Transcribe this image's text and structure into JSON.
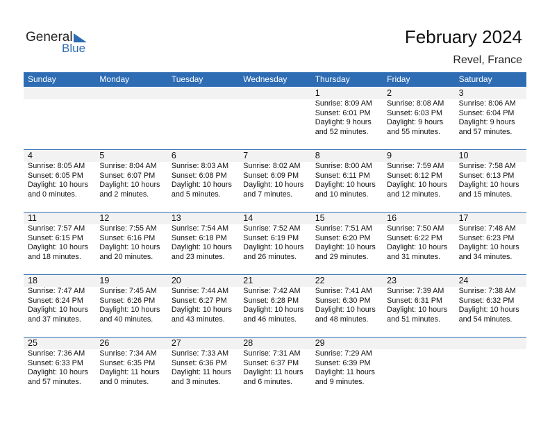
{
  "logo": {
    "word1": "General",
    "word2": "Blue"
  },
  "header": {
    "title": "February 2024",
    "subtitle": "Revel, France"
  },
  "weekdays": [
    "Sunday",
    "Monday",
    "Tuesday",
    "Wednesday",
    "Thursday",
    "Friday",
    "Saturday"
  ],
  "weeks": [
    [
      null,
      null,
      null,
      null,
      {
        "day": 1,
        "sunrise": "Sunrise: 8:09 AM",
        "sunset": "Sunset: 6:01 PM",
        "daylight": "Daylight: 9 hours",
        "minutes": "and 52 minutes."
      },
      {
        "day": 2,
        "sunrise": "Sunrise: 8:08 AM",
        "sunset": "Sunset: 6:03 PM",
        "daylight": "Daylight: 9 hours",
        "minutes": "and 55 minutes."
      },
      {
        "day": 3,
        "sunrise": "Sunrise: 8:06 AM",
        "sunset": "Sunset: 6:04 PM",
        "daylight": "Daylight: 9 hours",
        "minutes": "and 57 minutes."
      }
    ],
    [
      {
        "day": 4,
        "sunrise": "Sunrise: 8:05 AM",
        "sunset": "Sunset: 6:05 PM",
        "daylight": "Daylight: 10 hours",
        "minutes": "and 0 minutes."
      },
      {
        "day": 5,
        "sunrise": "Sunrise: 8:04 AM",
        "sunset": "Sunset: 6:07 PM",
        "daylight": "Daylight: 10 hours",
        "minutes": "and 2 minutes."
      },
      {
        "day": 6,
        "sunrise": "Sunrise: 8:03 AM",
        "sunset": "Sunset: 6:08 PM",
        "daylight": "Daylight: 10 hours",
        "minutes": "and 5 minutes."
      },
      {
        "day": 7,
        "sunrise": "Sunrise: 8:02 AM",
        "sunset": "Sunset: 6:09 PM",
        "daylight": "Daylight: 10 hours",
        "minutes": "and 7 minutes."
      },
      {
        "day": 8,
        "sunrise": "Sunrise: 8:00 AM",
        "sunset": "Sunset: 6:11 PM",
        "daylight": "Daylight: 10 hours",
        "minutes": "and 10 minutes."
      },
      {
        "day": 9,
        "sunrise": "Sunrise: 7:59 AM",
        "sunset": "Sunset: 6:12 PM",
        "daylight": "Daylight: 10 hours",
        "minutes": "and 12 minutes."
      },
      {
        "day": 10,
        "sunrise": "Sunrise: 7:58 AM",
        "sunset": "Sunset: 6:13 PM",
        "daylight": "Daylight: 10 hours",
        "minutes": "and 15 minutes."
      }
    ],
    [
      {
        "day": 11,
        "sunrise": "Sunrise: 7:57 AM",
        "sunset": "Sunset: 6:15 PM",
        "daylight": "Daylight: 10 hours",
        "minutes": "and 18 minutes."
      },
      {
        "day": 12,
        "sunrise": "Sunrise: 7:55 AM",
        "sunset": "Sunset: 6:16 PM",
        "daylight": "Daylight: 10 hours",
        "minutes": "and 20 minutes."
      },
      {
        "day": 13,
        "sunrise": "Sunrise: 7:54 AM",
        "sunset": "Sunset: 6:18 PM",
        "daylight": "Daylight: 10 hours",
        "minutes": "and 23 minutes."
      },
      {
        "day": 14,
        "sunrise": "Sunrise: 7:52 AM",
        "sunset": "Sunset: 6:19 PM",
        "daylight": "Daylight: 10 hours",
        "minutes": "and 26 minutes."
      },
      {
        "day": 15,
        "sunrise": "Sunrise: 7:51 AM",
        "sunset": "Sunset: 6:20 PM",
        "daylight": "Daylight: 10 hours",
        "minutes": "and 29 minutes."
      },
      {
        "day": 16,
        "sunrise": "Sunrise: 7:50 AM",
        "sunset": "Sunset: 6:22 PM",
        "daylight": "Daylight: 10 hours",
        "minutes": "and 31 minutes."
      },
      {
        "day": 17,
        "sunrise": "Sunrise: 7:48 AM",
        "sunset": "Sunset: 6:23 PM",
        "daylight": "Daylight: 10 hours",
        "minutes": "and 34 minutes."
      }
    ],
    [
      {
        "day": 18,
        "sunrise": "Sunrise: 7:47 AM",
        "sunset": "Sunset: 6:24 PM",
        "daylight": "Daylight: 10 hours",
        "minutes": "and 37 minutes."
      },
      {
        "day": 19,
        "sunrise": "Sunrise: 7:45 AM",
        "sunset": "Sunset: 6:26 PM",
        "daylight": "Daylight: 10 hours",
        "minutes": "and 40 minutes."
      },
      {
        "day": 20,
        "sunrise": "Sunrise: 7:44 AM",
        "sunset": "Sunset: 6:27 PM",
        "daylight": "Daylight: 10 hours",
        "minutes": "and 43 minutes."
      },
      {
        "day": 21,
        "sunrise": "Sunrise: 7:42 AM",
        "sunset": "Sunset: 6:28 PM",
        "daylight": "Daylight: 10 hours",
        "minutes": "and 46 minutes."
      },
      {
        "day": 22,
        "sunrise": "Sunrise: 7:41 AM",
        "sunset": "Sunset: 6:30 PM",
        "daylight": "Daylight: 10 hours",
        "minutes": "and 48 minutes."
      },
      {
        "day": 23,
        "sunrise": "Sunrise: 7:39 AM",
        "sunset": "Sunset: 6:31 PM",
        "daylight": "Daylight: 10 hours",
        "minutes": "and 51 minutes."
      },
      {
        "day": 24,
        "sunrise": "Sunrise: 7:38 AM",
        "sunset": "Sunset: 6:32 PM",
        "daylight": "Daylight: 10 hours",
        "minutes": "and 54 minutes."
      }
    ],
    [
      {
        "day": 25,
        "sunrise": "Sunrise: 7:36 AM",
        "sunset": "Sunset: 6:33 PM",
        "daylight": "Daylight: 10 hours",
        "minutes": "and 57 minutes."
      },
      {
        "day": 26,
        "sunrise": "Sunrise: 7:34 AM",
        "sunset": "Sunset: 6:35 PM",
        "daylight": "Daylight: 11 hours",
        "minutes": "and 0 minutes."
      },
      {
        "day": 27,
        "sunrise": "Sunrise: 7:33 AM",
        "sunset": "Sunset: 6:36 PM",
        "daylight": "Daylight: 11 hours",
        "minutes": "and 3 minutes."
      },
      {
        "day": 28,
        "sunrise": "Sunrise: 7:31 AM",
        "sunset": "Sunset: 6:37 PM",
        "daylight": "Daylight: 11 hours",
        "minutes": "and 6 minutes."
      },
      {
        "day": 29,
        "sunrise": "Sunrise: 7:29 AM",
        "sunset": "Sunset: 6:39 PM",
        "daylight": "Daylight: 11 hours",
        "minutes": "and 9 minutes."
      },
      null,
      null
    ]
  ]
}
